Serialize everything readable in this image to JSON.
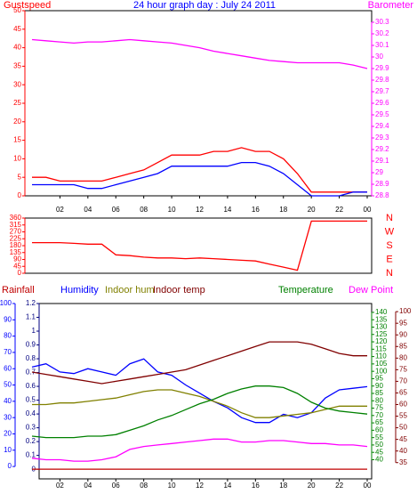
{
  "chart_data": [
    {
      "type": "line",
      "title": "24 hour graph day : July 24 2011",
      "x": [
        0,
        1,
        2,
        3,
        4,
        5,
        6,
        7,
        8,
        9,
        10,
        11,
        12,
        13,
        14,
        15,
        16,
        17,
        18,
        19,
        20,
        21,
        22,
        23,
        24
      ],
      "xlim": [
        0,
        24
      ],
      "xticks": [
        {
          "value": 2,
          "label": "02"
        },
        {
          "value": 4,
          "label": "04"
        },
        {
          "value": 6,
          "label": "06"
        },
        {
          "value": 8,
          "label": "08"
        },
        10,
        12,
        14,
        16,
        18,
        20,
        22,
        {
          "value": 24,
          "label": "00"
        }
      ],
      "ylim": [
        0,
        50
      ],
      "yticks": [
        0,
        5,
        10,
        15,
        20,
        25,
        30,
        35,
        40,
        45,
        50
      ],
      "ycolor": "#ff0000",
      "y2lim": [
        28.8,
        30.4
      ],
      "y2ticks": [
        28.8,
        28.9,
        29,
        29.1,
        29.2,
        29.3,
        29.4,
        29.5,
        29.6,
        29.7,
        29.8,
        29.9,
        30,
        30.1,
        30.2,
        30.3
      ],
      "y2color": "#ff00ff",
      "series": [
        {
          "name": "Gustspeed",
          "color": "#ff0000",
          "values": [
            5,
            5,
            4,
            4,
            4,
            4,
            5,
            6,
            7,
            9,
            11,
            11,
            11,
            12,
            12,
            13,
            12,
            12,
            10,
            6,
            1,
            1,
            1,
            1,
            1
          ]
        },
        {
          "color": "#0000ff",
          "values": [
            3,
            3,
            3,
            3,
            2,
            2,
            3,
            4,
            5,
            6,
            8,
            8,
            8,
            8,
            8,
            9,
            9,
            8,
            6,
            3,
            0,
            0,
            0,
            1,
            1
          ]
        },
        {
          "name": "Barometer",
          "color": "#ff00ff",
          "axis": "y2",
          "values": [
            30.15,
            30.14,
            30.13,
            30.12,
            30.13,
            30.13,
            30.14,
            30.15,
            30.14,
            30.13,
            30.12,
            30.1,
            30.08,
            30.05,
            30.03,
            30.01,
            29.99,
            29.97,
            29.96,
            29.95,
            29.95,
            29.95,
            29.95,
            29.93,
            29.9
          ]
        }
      ]
    },
    {
      "type": "line",
      "x": [
        0,
        1,
        2,
        3,
        4,
        5,
        6,
        7,
        8,
        9,
        10,
        11,
        12,
        13,
        14,
        15,
        16,
        17,
        18,
        19,
        20,
        21,
        22,
        23,
        24
      ],
      "xlim": [
        0,
        24
      ],
      "ylim": [
        0,
        360
      ],
      "yticks": [
        0,
        45,
        90,
        135,
        180,
        225,
        270,
        315,
        360
      ],
      "ycolor": "#ff0000",
      "compass": [
        "N",
        "W",
        "S",
        "E",
        "N"
      ],
      "compass_color": "#ff0000",
      "series": [
        {
          "color": "#ff0000",
          "values": [
            200,
            200,
            200,
            195,
            190,
            190,
            120,
            115,
            105,
            100,
            100,
            95,
            100,
            95,
            90,
            85,
            80,
            60,
            40,
            20,
            340,
            340,
            340,
            340,
            340
          ]
        }
      ]
    },
    {
      "type": "line",
      "x": [
        0,
        1,
        2,
        3,
        4,
        5,
        6,
        7,
        8,
        9,
        10,
        11,
        12,
        13,
        14,
        15,
        16,
        17,
        18,
        19,
        20,
        21,
        22,
        23,
        24
      ],
      "xlim": [
        0,
        24
      ],
      "xticks": [
        {
          "value": 2,
          "label": "02"
        },
        {
          "value": 4,
          "label": "04"
        },
        {
          "value": 6,
          "label": "06"
        },
        {
          "value": 8,
          "label": "08"
        },
        10,
        12,
        14,
        16,
        18,
        20,
        22,
        {
          "value": 24,
          "label": "00"
        }
      ],
      "axes": {
        "left": {
          "lim": [
            -7.6,
            100
          ],
          "ticks": [
            0,
            10,
            20,
            30,
            40,
            50,
            60,
            70,
            80,
            90,
            100
          ],
          "color": "#0000ff"
        },
        "left2": {
          "lim": [
            -0.07,
            1.2
          ],
          "ticks": [
            0,
            0.1,
            0.2,
            0.3,
            0.4,
            0.5,
            0.6,
            0.7,
            0.8,
            0.9,
            1,
            1.1,
            1.2
          ],
          "color": "#000080"
        },
        "right": {
          "lim": [
            27,
            146
          ],
          "ticks": [
            40,
            45,
            50,
            55,
            60,
            65,
            70,
            75,
            80,
            85,
            90,
            95,
            100,
            105,
            110,
            115,
            120,
            125,
            130,
            135,
            140
          ],
          "color": "#008000"
        },
        "right2": {
          "lim": [
            28,
            103.5
          ],
          "ticks": [
            35,
            40,
            45,
            50,
            55,
            60,
            65,
            70,
            75,
            80,
            85,
            90,
            95,
            100
          ],
          "color": "#800000"
        }
      },
      "series": [
        {
          "name": "Rainfall",
          "color": "#c00000",
          "axis": "left2",
          "values": [
            0,
            0,
            0,
            0,
            0,
            0,
            0,
            0,
            0,
            0,
            0,
            0,
            0,
            0,
            0,
            0,
            0,
            0,
            0,
            0,
            0,
            0,
            0,
            0,
            0
          ]
        },
        {
          "name": "Humidity",
          "color": "#0000ff",
          "axis": "left",
          "values": [
            61,
            63,
            58,
            57,
            60,
            58,
            56,
            63,
            66,
            58,
            56,
            50,
            45,
            40,
            36,
            30,
            27,
            27,
            32,
            30,
            33,
            42,
            47,
            48,
            49
          ]
        },
        {
          "name": "Indoor hum",
          "color": "#808000",
          "axis": "left",
          "values": [
            38,
            38,
            39,
            39,
            40,
            41,
            42,
            44,
            46,
            47,
            47,
            45,
            43,
            40,
            37,
            33,
            30,
            30,
            31,
            32,
            33,
            35,
            37,
            37,
            37
          ]
        },
        {
          "name": "Indoor temp",
          "color": "#800000",
          "axis": "right2",
          "values": [
            74,
            73,
            72,
            71,
            70,
            69,
            70,
            71,
            72,
            73,
            74,
            75,
            77,
            79,
            81,
            83,
            85,
            87,
            87,
            87,
            86,
            84,
            82,
            81,
            81
          ]
        },
        {
          "name": "Temperature",
          "color": "#008000",
          "axis": "right",
          "values": [
            56,
            55,
            55,
            55,
            56,
            56,
            57,
            60,
            63,
            67,
            70,
            74,
            78,
            81,
            85,
            88,
            90,
            90,
            89,
            85,
            79,
            75,
            73,
            72,
            71
          ]
        },
        {
          "name": "Dew Point",
          "color": "#ff00ff",
          "axis": "right",
          "values": [
            41,
            40,
            40,
            39,
            39,
            40,
            42,
            47,
            49,
            50,
            51,
            52,
            53,
            54,
            54,
            52,
            52,
            53,
            53,
            52,
            51,
            51,
            50,
            50,
            49
          ]
        }
      ]
    }
  ]
}
